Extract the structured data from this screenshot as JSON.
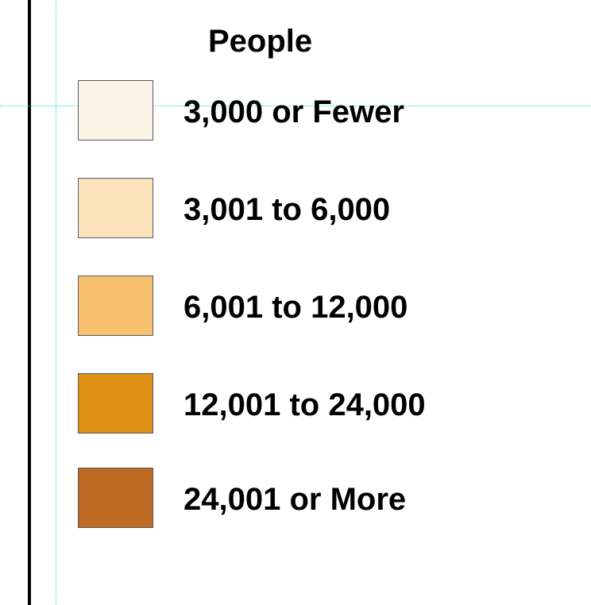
{
  "legend": {
    "title": "People",
    "items": [
      {
        "label": "3,000 or Fewer",
        "color": "#fdf4e8"
      },
      {
        "label": "3,001 to 6,000",
        "color": "#fde3bc"
      },
      {
        "label": "6,001 to 12,000",
        "color": "#f7c170"
      },
      {
        "label": "12,001 to 24,000",
        "color": "#df9117"
      },
      {
        "label": "24,001 or More",
        "color": "#bd6b24"
      }
    ]
  },
  "colors": {
    "frame_line": "#000000",
    "guide_line": "#2fd6d6",
    "swatch_border": "#5a5a5a"
  }
}
